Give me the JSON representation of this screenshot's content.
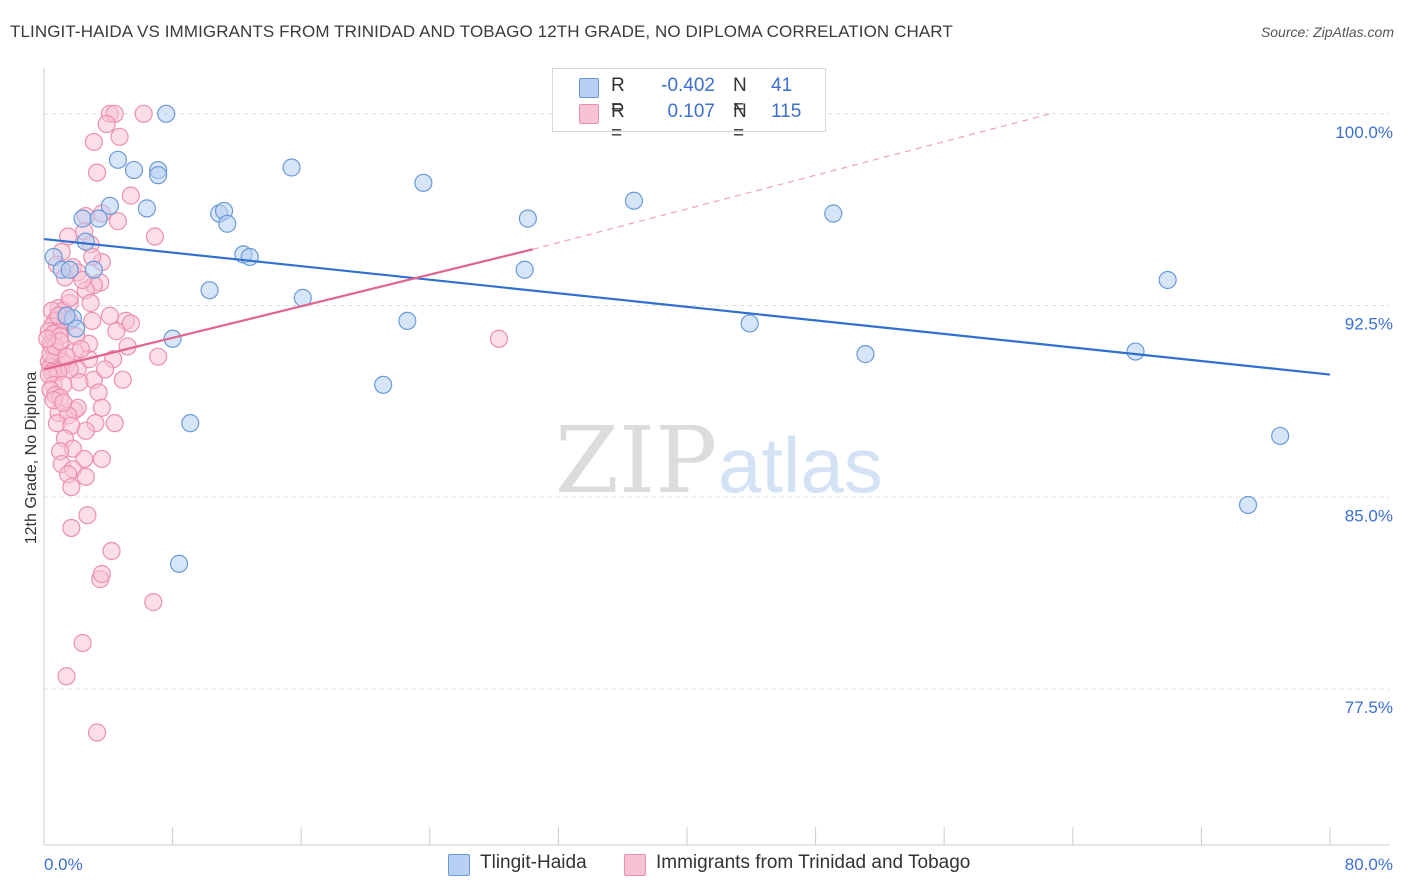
{
  "title": "TLINGIT-HAIDA VS IMMIGRANTS FROM TRINIDAD AND TOBAGO 12TH GRADE, NO DIPLOMA CORRELATION CHART",
  "source": "Source: ZipAtlas.com",
  "watermark": {
    "zip": "ZIP",
    "atlas": "atlas"
  },
  "legend": {
    "r_label": "R =",
    "n_label": "N =",
    "series1": {
      "r": "-0.402",
      "n": "41"
    },
    "series2": {
      "r": "0.107",
      "n": "115"
    }
  },
  "bottom_legend": {
    "series1": "Tlingit-Haida",
    "series2": "Immigrants from Trinidad and Tobago"
  },
  "colors": {
    "blue_fill": "#b7d0f3",
    "blue_stroke": "#6b9ad8",
    "blue_line": "#2f6fd0",
    "pink_fill": "#f7c3d4",
    "pink_stroke": "#ec8fb0",
    "pink_line": "#e0648e",
    "axis_text": "#3c6fcf",
    "grid": "#dddddd"
  },
  "chart_data": {
    "type": "scatter",
    "title": "TLINGIT-HAIDA VS IMMIGRANTS FROM TRINIDAD AND TOBAGO 12TH GRADE, NO DIPLOMA CORRELATION CHART",
    "xlabel": "",
    "ylabel": "12th Grade, No Diploma",
    "xlim": [
      0,
      80
    ],
    "ylim": [
      71.4,
      101.4
    ],
    "x_tick_labels": [
      "0.0%",
      "80.0%"
    ],
    "y_ticks": [
      77.5,
      85.0,
      92.5,
      100.0
    ],
    "y_tick_labels": [
      "77.5%",
      "85.0%",
      "92.5%",
      "100.0%"
    ],
    "series": [
      {
        "name": "Tlingit-Haida",
        "r": -0.402,
        "n": 41,
        "trend": {
          "x": [
            0,
            80
          ],
          "y": [
            95.1,
            89.8
          ],
          "dashed_after": null
        },
        "points": [
          [
            7.6,
            100.0
          ],
          [
            4.6,
            98.2
          ],
          [
            5.6,
            97.8
          ],
          [
            7.1,
            97.8
          ],
          [
            7.1,
            97.6
          ],
          [
            15.4,
            97.9
          ],
          [
            23.6,
            97.3
          ],
          [
            36.7,
            96.6
          ],
          [
            4.1,
            96.4
          ],
          [
            6.4,
            96.3
          ],
          [
            10.9,
            96.1
          ],
          [
            11.2,
            96.2
          ],
          [
            11.4,
            95.7
          ],
          [
            2.4,
            95.9
          ],
          [
            3.4,
            95.9
          ],
          [
            2.6,
            95.0
          ],
          [
            12.4,
            94.5
          ],
          [
            12.8,
            94.4
          ],
          [
            49.1,
            96.1
          ],
          [
            30.1,
            95.9
          ],
          [
            0.6,
            94.4
          ],
          [
            1.1,
            93.9
          ],
          [
            3.1,
            93.9
          ],
          [
            1.6,
            93.9
          ],
          [
            29.9,
            93.9
          ],
          [
            69.9,
            93.5
          ],
          [
            10.3,
            93.1
          ],
          [
            16.1,
            92.8
          ],
          [
            22.6,
            91.9
          ],
          [
            43.9,
            91.8
          ],
          [
            8.0,
            91.2
          ],
          [
            1.8,
            92.0
          ],
          [
            51.1,
            90.6
          ],
          [
            67.9,
            90.7
          ],
          [
            21.1,
            89.4
          ],
          [
            9.1,
            87.9
          ],
          [
            76.9,
            87.4
          ],
          [
            74.9,
            84.7
          ],
          [
            8.4,
            82.4
          ],
          [
            2.0,
            91.6
          ],
          [
            1.4,
            92.1
          ]
        ]
      },
      {
        "name": "Immigrants from Trinidad and Tobago",
        "r": 0.107,
        "n": 115,
        "trend": {
          "x": [
            0,
            30.4
          ],
          "y": [
            90.0,
            94.7
          ],
          "dashed_to": [
            62.6,
            100.0
          ]
        },
        "points": [
          [
            4.1,
            100.0
          ],
          [
            4.4,
            100.0
          ],
          [
            6.2,
            100.0
          ],
          [
            3.9,
            99.6
          ],
          [
            4.7,
            99.1
          ],
          [
            3.1,
            98.9
          ],
          [
            3.3,
            97.7
          ],
          [
            5.4,
            96.8
          ],
          [
            3.6,
            96.1
          ],
          [
            2.6,
            96.0
          ],
          [
            4.6,
            95.8
          ],
          [
            2.5,
            95.4
          ],
          [
            6.9,
            95.2
          ],
          [
            1.5,
            95.2
          ],
          [
            2.9,
            94.9
          ],
          [
            1.1,
            94.6
          ],
          [
            1.8,
            94.0
          ],
          [
            3.6,
            94.2
          ],
          [
            0.8,
            94.1
          ],
          [
            2.1,
            93.8
          ],
          [
            1.3,
            93.6
          ],
          [
            3.5,
            93.4
          ],
          [
            3.1,
            93.3
          ],
          [
            2.6,
            93.1
          ],
          [
            2.9,
            92.6
          ],
          [
            1.6,
            92.6
          ],
          [
            0.9,
            92.4
          ],
          [
            1.2,
            92.3
          ],
          [
            0.5,
            92.3
          ],
          [
            4.1,
            92.1
          ],
          [
            0.7,
            91.9
          ],
          [
            1.3,
            91.9
          ],
          [
            1.6,
            91.9
          ],
          [
            5.1,
            91.9
          ],
          [
            5.4,
            91.8
          ],
          [
            3.0,
            91.9
          ],
          [
            0.5,
            91.7
          ],
          [
            0.9,
            91.5
          ],
          [
            4.5,
            91.5
          ],
          [
            0.3,
            91.5
          ],
          [
            0.6,
            91.4
          ],
          [
            1.0,
            91.3
          ],
          [
            2.8,
            91.0
          ],
          [
            0.4,
            91.0
          ],
          [
            0.5,
            90.9
          ],
          [
            1.9,
            90.7
          ],
          [
            0.8,
            90.7
          ],
          [
            28.3,
            91.2
          ],
          [
            7.1,
            90.5
          ],
          [
            2.8,
            90.4
          ],
          [
            4.3,
            90.4
          ],
          [
            1.1,
            90.3
          ],
          [
            0.3,
            90.3
          ],
          [
            0.6,
            90.3
          ],
          [
            1.4,
            90.2
          ],
          [
            0.4,
            90.1
          ],
          [
            2.1,
            90.0
          ],
          [
            0.8,
            89.9
          ],
          [
            1.6,
            90.0
          ],
          [
            0.5,
            89.9
          ],
          [
            0.9,
            89.9
          ],
          [
            0.3,
            89.8
          ],
          [
            3.1,
            89.6
          ],
          [
            4.9,
            89.6
          ],
          [
            0.6,
            89.4
          ],
          [
            1.2,
            89.4
          ],
          [
            0.4,
            89.2
          ],
          [
            3.4,
            89.1
          ],
          [
            0.7,
            89.0
          ],
          [
            1.0,
            88.9
          ],
          [
            1.9,
            88.4
          ],
          [
            2.1,
            88.5
          ],
          [
            3.6,
            88.5
          ],
          [
            0.9,
            88.3
          ],
          [
            1.5,
            88.2
          ],
          [
            3.2,
            87.9
          ],
          [
            4.4,
            87.9
          ],
          [
            0.8,
            87.9
          ],
          [
            1.7,
            87.8
          ],
          [
            2.6,
            87.6
          ],
          [
            1.3,
            87.3
          ],
          [
            1.8,
            86.9
          ],
          [
            1.0,
            86.8
          ],
          [
            2.5,
            86.5
          ],
          [
            3.6,
            86.5
          ],
          [
            1.1,
            86.3
          ],
          [
            1.8,
            86.1
          ],
          [
            1.5,
            85.9
          ],
          [
            2.6,
            85.8
          ],
          [
            1.7,
            85.4
          ],
          [
            2.7,
            84.3
          ],
          [
            1.7,
            83.8
          ],
          [
            4.2,
            82.9
          ],
          [
            3.5,
            81.8
          ],
          [
            3.6,
            82.0
          ],
          [
            6.8,
            80.9
          ],
          [
            2.4,
            79.3
          ],
          [
            1.4,
            78.0
          ],
          [
            3.3,
            75.8
          ],
          [
            0.4,
            90.6
          ],
          [
            0.7,
            90.9
          ],
          [
            1.0,
            91.1
          ],
          [
            1.4,
            90.5
          ],
          [
            2.0,
            91.3
          ],
          [
            2.3,
            90.8
          ],
          [
            0.2,
            91.2
          ],
          [
            0.9,
            92.1
          ],
          [
            1.6,
            92.8
          ],
          [
            2.4,
            93.5
          ],
          [
            3.0,
            94.4
          ],
          [
            0.6,
            88.8
          ],
          [
            1.2,
            88.7
          ],
          [
            2.2,
            89.5
          ],
          [
            3.8,
            90.0
          ],
          [
            5.2,
            90.9
          ]
        ]
      }
    ]
  }
}
